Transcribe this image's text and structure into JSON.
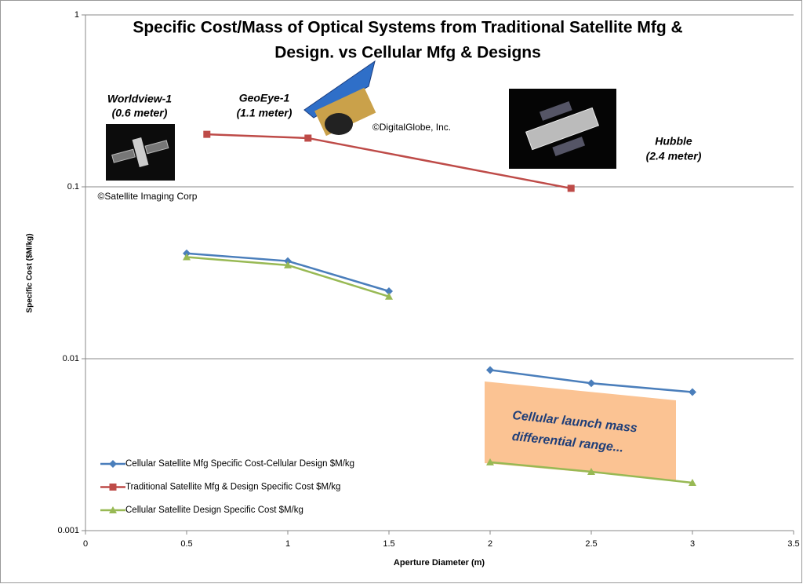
{
  "chart_data": {
    "type": "line",
    "title": [
      "Specific Cost/Mass of Optical Systems from Traditional Satellite Mfg &",
      "Design. vs Cellular Mfg & Designs"
    ],
    "x_label": "Aperture Diameter (m)",
    "y_label": "Specific Cost ($M/kg)",
    "xlim": [
      0,
      3.5
    ],
    "xticks": [
      0,
      0.5,
      1,
      1.5,
      2,
      2.5,
      3,
      3.5
    ],
    "ylim": [
      0.001,
      1
    ],
    "yticks": [
      0.001,
      0.01,
      0.1,
      1
    ],
    "log_y": true,
    "grid": true,
    "legend": "lower left",
    "series": [
      {
        "name": "Cellular Satellite Mfg Specific Cost-Cellular Design $M/kg",
        "color": "#4a7ebb",
        "marker": "diamond",
        "x": [
          0.5,
          1,
          1.5,
          null,
          2,
          2.5,
          3
        ],
        "values": [
          0.041,
          0.037,
          0.0247,
          null,
          0.0086,
          0.0072,
          0.0064
        ]
      },
      {
        "name": "Traditional Satellite Mfg & Design Specific Cost $M/kg",
        "color": "#be4b48",
        "marker": "square",
        "x": [
          0.6,
          1.1,
          2.4
        ],
        "values": [
          0.202,
          0.192,
          0.098
        ]
      },
      {
        "name": "Cellular Satellite Design Specific Cost $M/kg",
        "color": "#98b954",
        "marker": "triangle",
        "x": [
          0.5,
          1,
          1.5,
          null,
          2,
          2.5,
          3
        ],
        "values": [
          0.039,
          0.035,
          0.023,
          null,
          0.0025,
          0.0022,
          0.0019
        ]
      }
    ],
    "annotations": [
      "Worldview-1",
      "(0.6 meter)",
      "GeoEye-1",
      "(1.1 meter)",
      "Hubble",
      "(2.4 meter)",
      "©Satellite Imaging Corp",
      "©DigitalGlobe, Inc.",
      "Cellular launch mass",
      "differential range..."
    ]
  }
}
